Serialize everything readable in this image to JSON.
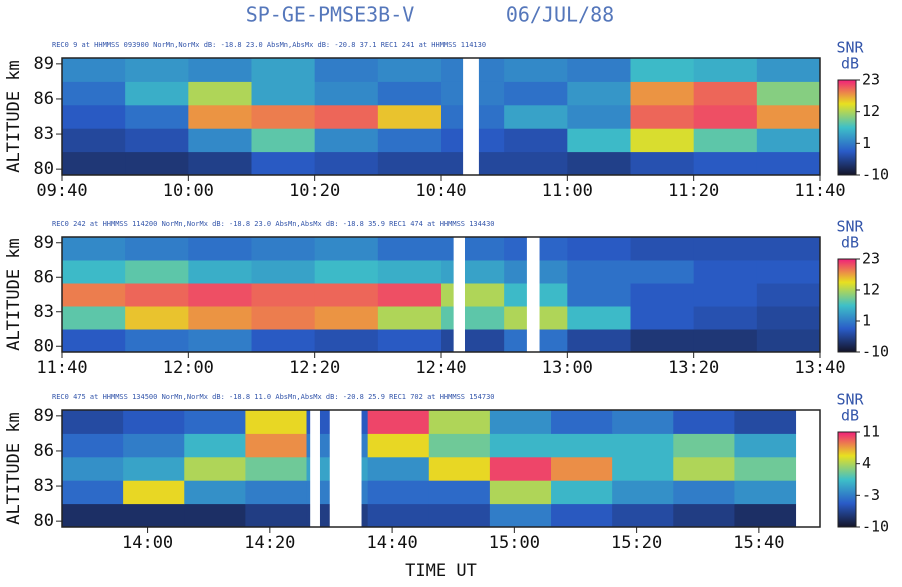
{
  "title": "SP-GE-PMSE3B-V",
  "date": "06/JUL/88",
  "chart_data": [
    {
      "type": "heatmap",
      "header": "REC0 9 at HHMMSS 093900  NorMn,NorMx dB: -18.8  23.0  AbsMn,AbsMx dB: -20.8  37.1  REC1 241 at HHMMSS 114130",
      "ylabel": "ALTITUDE km",
      "x": [
        585,
        595,
        605,
        615,
        625,
        635,
        645,
        655,
        665,
        675,
        685,
        695
      ],
      "y": [
        80.5,
        82.5,
        84.5,
        86.5,
        88.5
      ],
      "z": [
        [
          -6,
          -6,
          -5,
          -2,
          -3,
          -4,
          -4,
          -4,
          -5,
          -3,
          -2,
          -2
        ],
        [
          -4,
          -3,
          2,
          8,
          2,
          0,
          -2,
          -3,
          6,
          14,
          8,
          4
        ],
        [
          -2,
          0,
          18,
          19,
          20,
          16,
          0,
          4,
          2,
          20,
          21,
          18
        ],
        [
          0,
          5,
          12,
          4,
          2,
          0,
          1,
          0,
          3,
          18,
          20,
          10
        ],
        [
          2,
          3,
          2,
          4,
          1,
          2,
          1,
          2,
          1,
          6,
          5,
          3
        ]
      ],
      "gaps": [
        [
          643.5,
          646
        ]
      ],
      "xlim": [
        580,
        700
      ],
      "xticks": [
        {
          "value": 580,
          "label": "09:40"
        },
        {
          "value": 600,
          "label": "10:00"
        },
        {
          "value": 620,
          "label": "10:20"
        },
        {
          "value": 640,
          "label": "10:40"
        },
        {
          "value": 660,
          "label": "11:00"
        },
        {
          "value": 680,
          "label": "11:20"
        },
        {
          "value": 700,
          "label": "11:40"
        }
      ],
      "ylim": [
        79.5,
        89.5
      ],
      "yticks": [
        80,
        83,
        86,
        89
      ],
      "colorbar": {
        "label": "SNR",
        "unit": "dB",
        "clim": [
          -10,
          23
        ],
        "ticks": [
          -10,
          1,
          12,
          23
        ]
      },
      "colors": [
        "#141428",
        "#2a5cc8",
        "#3ec0c8",
        "#e8e020",
        "#f0207a"
      ]
    },
    {
      "type": "heatmap",
      "header": "REC0 242 at HHMMSS 114200  NorMn,NorMx dB: -18.8  23.0  AbsMn,AbsMx dB: -18.8  35.9  REC1 474 at HHMMSS 134430",
      "ylabel": "ALTITUDE km",
      "x": [
        705,
        715,
        725,
        735,
        745,
        755,
        765,
        775,
        785,
        795,
        805,
        815
      ],
      "y": [
        80.5,
        82.5,
        84.5,
        86.5,
        88.5
      ],
      "z": [
        [
          -2,
          0,
          1,
          -2,
          -3,
          -2,
          -4,
          0,
          -4,
          -6,
          -6,
          -5
        ],
        [
          8,
          16,
          18,
          19,
          18,
          12,
          8,
          12,
          6,
          -2,
          -3,
          -4
        ],
        [
          19,
          20,
          21,
          20,
          20,
          21,
          12,
          6,
          0,
          -2,
          -2,
          -3
        ],
        [
          6,
          8,
          5,
          4,
          6,
          5,
          4,
          2,
          0,
          0,
          -2,
          -2
        ],
        [
          2,
          1,
          0,
          1,
          2,
          0,
          0,
          -1,
          -2,
          -3,
          -3,
          -3
        ]
      ],
      "gaps": [
        [
          762,
          763.8
        ],
        [
          773.6,
          775.6
        ]
      ],
      "xlim": [
        700,
        820
      ],
      "xticks": [
        {
          "value": 700,
          "label": "11:40"
        },
        {
          "value": 720,
          "label": "12:00"
        },
        {
          "value": 740,
          "label": "12:20"
        },
        {
          "value": 760,
          "label": "12:40"
        },
        {
          "value": 780,
          "label": "13:00"
        },
        {
          "value": 800,
          "label": "13:20"
        },
        {
          "value": 820,
          "label": "13:40"
        }
      ],
      "ylim": [
        79.5,
        89.5
      ],
      "yticks": [
        80,
        83,
        86,
        89
      ],
      "colorbar": {
        "label": "SNR",
        "unit": "dB",
        "clim": [
          -10,
          23
        ],
        "ticks": [
          -10,
          1,
          12,
          23
        ]
      },
      "colors": [
        "#141428",
        "#2a5cc8",
        "#3ec0c8",
        "#e8e020",
        "#f0207a"
      ]
    },
    {
      "type": "heatmap",
      "header": "REC0 475 at HHMMSS 134500  NorMn,NorMx dB: -18.8  11.0  AbsMn,AbsMx dB: -20.8  25.9  REC1 702 at HHMMSS 154730",
      "ylabel": "ALTITUDE km",
      "xlabel": "TIME UT",
      "x": [
        831,
        841,
        851,
        861,
        871,
        881,
        891,
        901,
        911,
        921,
        931,
        941
      ],
      "y": [
        80.5,
        82.5,
        84.5,
        86.5,
        88.5
      ],
      "z": [
        [
          -8,
          -8,
          -8,
          -7,
          -7,
          -6,
          -6,
          -3,
          -5,
          -6,
          -7,
          -8
        ],
        [
          -4,
          6,
          -2,
          -3,
          -3,
          -4,
          -4,
          4,
          0,
          -2,
          -3,
          -2
        ],
        [
          -2,
          -1,
          4,
          2,
          -1,
          -2,
          6,
          10,
          8,
          0,
          4,
          2
        ],
        [
          -4,
          -3,
          0,
          8,
          -3,
          6,
          2,
          0,
          0,
          0,
          2,
          -1
        ],
        [
          -6,
          -5,
          -4,
          6,
          -5,
          10,
          4,
          -2,
          -4,
          -3,
          -5,
          -6
        ]
      ],
      "gaps": [
        [
          866.6,
          868.2
        ],
        [
          869.8,
          875
        ]
      ],
      "xlim": [
        826,
        950
      ],
      "xticks": [
        {
          "value": 840,
          "label": "14:00"
        },
        {
          "value": 860,
          "label": "14:20"
        },
        {
          "value": 880,
          "label": "14:40"
        },
        {
          "value": 900,
          "label": "15:00"
        },
        {
          "value": 920,
          "label": "15:20"
        },
        {
          "value": 940,
          "label": "15:40"
        }
      ],
      "ylim": [
        79.5,
        89.5
      ],
      "yticks": [
        80,
        83,
        86,
        89
      ],
      "colorbar": {
        "label": "SNR",
        "unit": "dB",
        "clim": [
          -10,
          11
        ],
        "ticks": [
          -10,
          -3,
          4,
          11
        ]
      },
      "colors": [
        "#141428",
        "#2a5cc8",
        "#3ec0c8",
        "#e8e020",
        "#f0207a"
      ]
    }
  ]
}
